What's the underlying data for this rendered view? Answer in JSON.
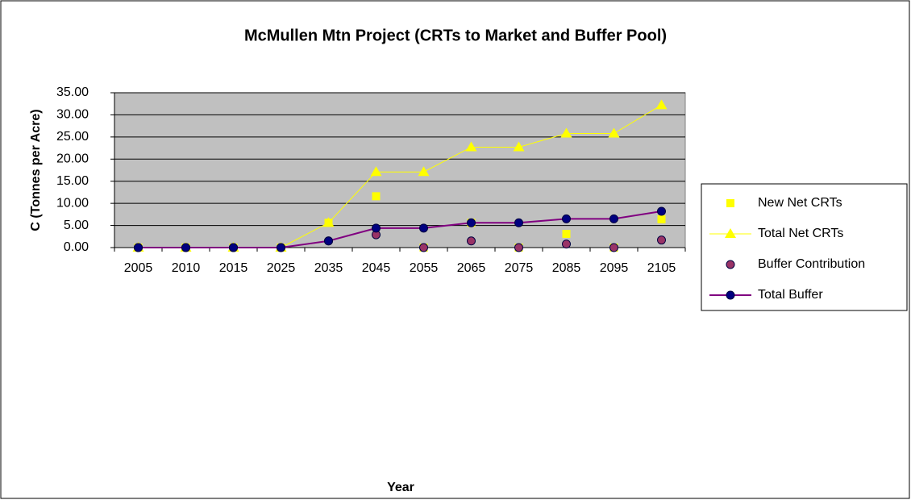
{
  "chart_data": {
    "type": "line",
    "title": "McMullen Mtn Project (CRTs to Market and Buffer Pool)",
    "x_label": "Year",
    "y_label": "C (Tonnes per Acre)",
    "categories": [
      "2005",
      "2010",
      "2015",
      "2025",
      "2035",
      "2045",
      "2055",
      "2065",
      "2075",
      "2085",
      "2095",
      "2105"
    ],
    "series": [
      {
        "name": "New  Net CRTs",
        "color": "#ffff00",
        "marker": "square",
        "line": false,
        "values": [
          0,
          0,
          0,
          0,
          5.6,
          11.6,
          0,
          5.6,
          0,
          3.1,
          0,
          6.4
        ]
      },
      {
        "name": "Total Net CRTs",
        "color": "#ffff00",
        "marker": "triangle",
        "line": true,
        "values": [
          0,
          0,
          0,
          0,
          5.6,
          17.1,
          17.1,
          22.7,
          22.7,
          25.8,
          25.8,
          32.2
        ]
      },
      {
        "name": "Buffer Contribution",
        "color": "#993366",
        "marker": "circle",
        "line": false,
        "values": [
          0,
          0,
          0,
          0,
          1.5,
          2.9,
          0,
          1.5,
          0,
          0.8,
          0,
          1.7
        ]
      },
      {
        "name": "Total Buffer",
        "color": "#800080",
        "marker_color": "#000080",
        "marker": "circle",
        "line": true,
        "values": [
          0,
          0,
          0,
          0,
          1.5,
          4.4,
          4.4,
          5.6,
          5.6,
          6.5,
          6.5,
          8.2
        ]
      }
    ],
    "ylim": [
      0,
      35
    ],
    "yticks": [
      {
        "value": 0,
        "label": "0.00"
      },
      {
        "value": 5,
        "label": "5.00"
      },
      {
        "value": 10,
        "label": "10.00"
      },
      {
        "value": 15,
        "label": "15.00"
      },
      {
        "value": 20,
        "label": "20.00"
      },
      {
        "value": 25,
        "label": "25.00"
      },
      {
        "value": 30,
        "label": "30.00"
      },
      {
        "value": 35,
        "label": "35.00"
      }
    ],
    "grid": true,
    "legend": "right",
    "plot_background": "#c0c0c0"
  }
}
